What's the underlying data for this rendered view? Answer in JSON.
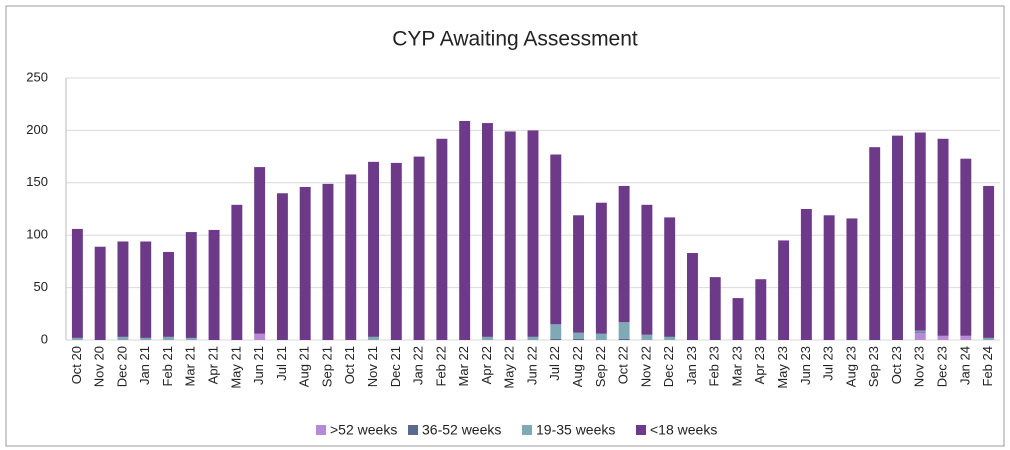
{
  "chart_data": {
    "type": "bar",
    "stacked": true,
    "title": "CYP Awaiting Assessment",
    "categories": [
      "Oct 20",
      "Nov 20",
      "Dec 20",
      "Jan 21",
      "Feb 21",
      "Mar 21",
      "Apr 21",
      "May 21",
      "Jun 21",
      "Jul 21",
      "Aug 21",
      "Sep 21",
      "Oct 21",
      "Nov 21",
      "Dec 21",
      "Jan 22",
      "Feb 22",
      "Mar 22",
      "Apr 22",
      "May 22",
      "Jun 22",
      "Jul 22",
      "Aug 22",
      "Sep 22",
      "Oct 22",
      "Nov 22",
      "Dec 22",
      "Jan 23",
      "Feb 23",
      "Mar 23",
      "Apr 23",
      "May 23",
      "Jun 23",
      "Jul 23",
      "Aug 23",
      "Sep 23",
      "Oct 23",
      "Nov 23",
      "Dec 23",
      "Jan 24",
      "Feb 24"
    ],
    "series": [
      {
        "name": ">52 weeks",
        "color": "#b88ad3",
        "values": [
          0,
          0,
          0,
          0,
          0,
          0,
          0,
          0,
          6,
          0,
          0,
          0,
          0,
          0,
          0,
          0,
          0,
          0,
          0,
          0,
          0,
          0,
          0,
          0,
          0,
          0,
          0,
          0,
          0,
          0,
          0,
          0,
          0,
          0,
          0,
          0,
          0,
          7,
          4,
          4,
          0
        ]
      },
      {
        "name": "36-52 weeks",
        "color": "#5a6a8e",
        "values": [
          0,
          0,
          0,
          0,
          0,
          0,
          0,
          0,
          0,
          0,
          0,
          0,
          0,
          0,
          0,
          0,
          0,
          0,
          0,
          0,
          0,
          1,
          1,
          0,
          1,
          0,
          0,
          0,
          0,
          0,
          0,
          0,
          0,
          0,
          0,
          0,
          0,
          1,
          0,
          0,
          0
        ]
      },
      {
        "name": "19-35 weeks",
        "color": "#80a9b6",
        "values": [
          2,
          0,
          3,
          2,
          3,
          2,
          0,
          0,
          0,
          0,
          0,
          0,
          0,
          3,
          0,
          0,
          0,
          0,
          3,
          0,
          3,
          14,
          6,
          6,
          16,
          5,
          3,
          0,
          0,
          0,
          0,
          0,
          0,
          0,
          0,
          0,
          0,
          1,
          0,
          0,
          2
        ]
      },
      {
        "name": "<18 weeks",
        "color": "#6d3a89",
        "values": [
          104,
          89,
          91,
          92,
          81,
          101,
          105,
          129,
          159,
          140,
          146,
          149,
          158,
          167,
          169,
          175,
          192,
          209,
          204,
          199,
          197,
          162,
          112,
          125,
          130,
          124,
          114,
          83,
          60,
          40,
          58,
          95,
          125,
          119,
          116,
          184,
          195,
          189,
          188,
          169,
          145
        ]
      }
    ],
    "ylim": [
      0,
      250
    ],
    "yticks": [
      0,
      50,
      100,
      150,
      200,
      250
    ],
    "grid": true,
    "legend": "bottom"
  }
}
